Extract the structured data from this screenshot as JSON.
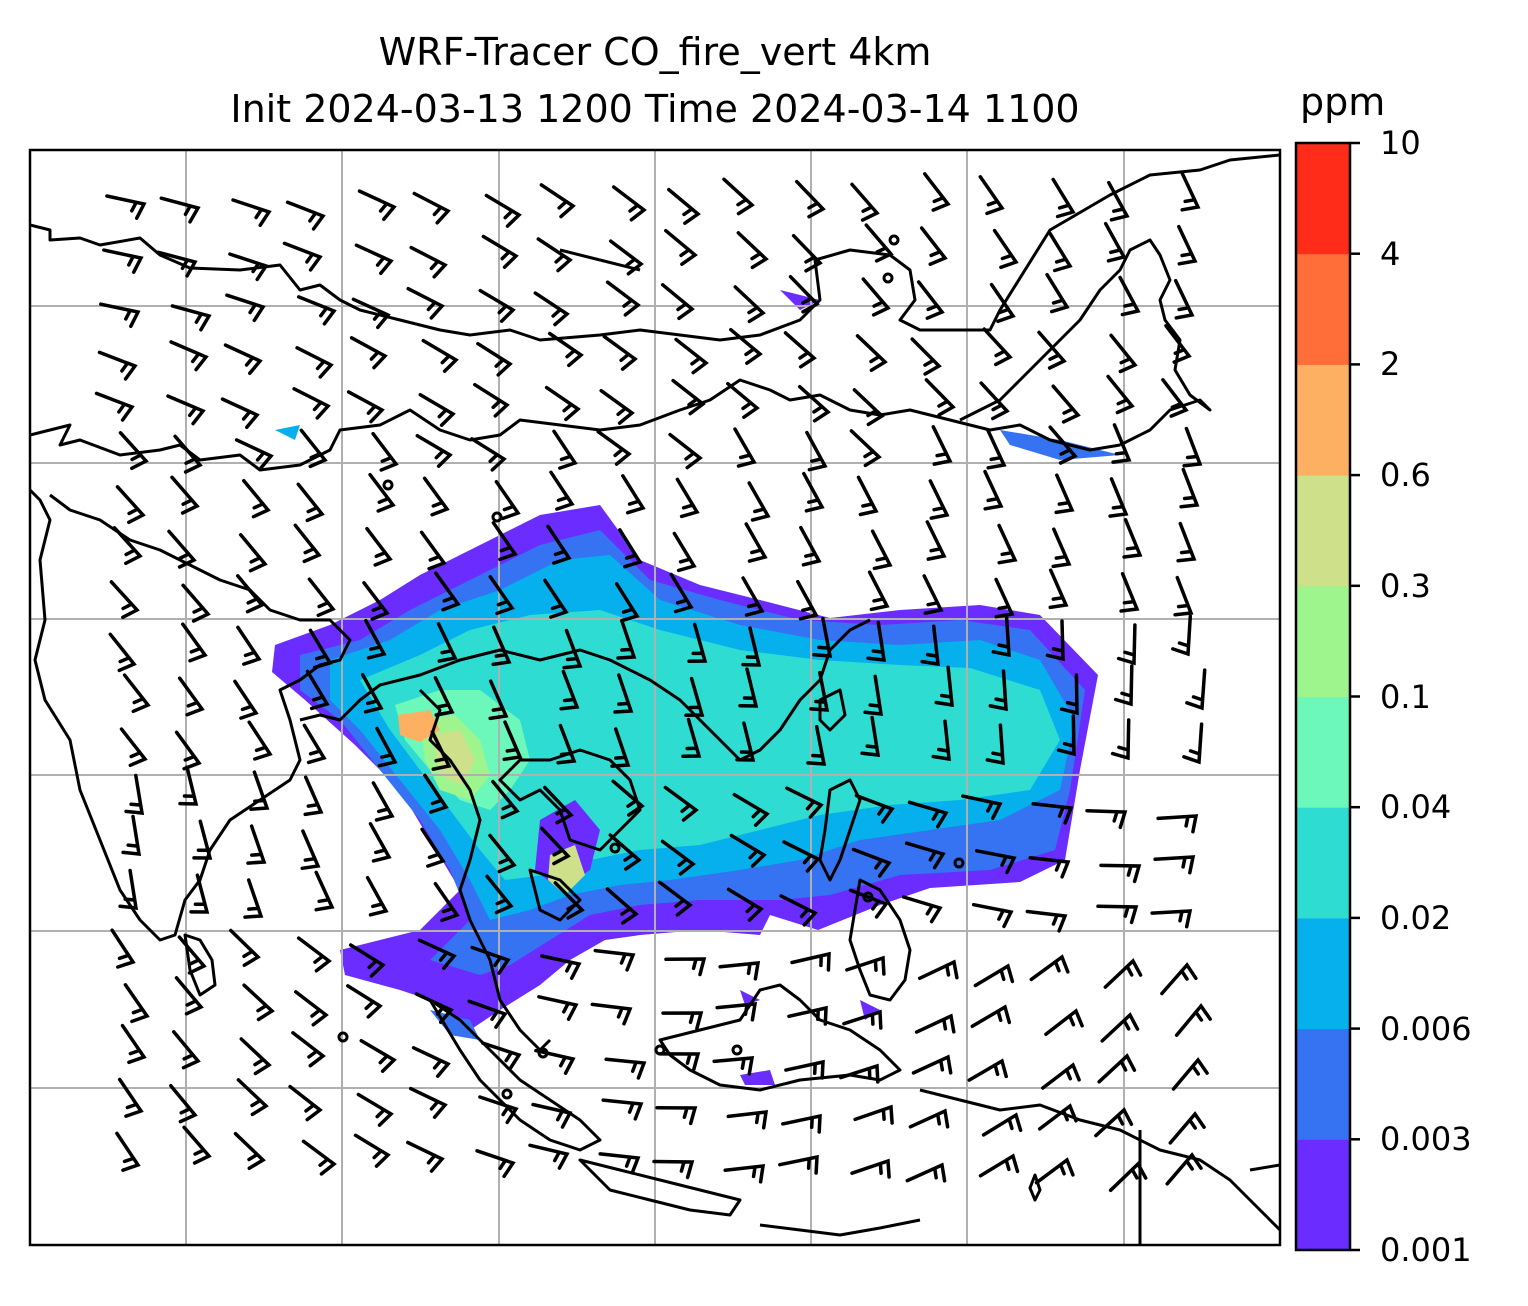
{
  "title_line1": "WRF-Tracer CO_fire_vert 4km",
  "title_line2": "Init 2024-03-13 1200 Time 2024-03-14 1100",
  "colorbar": {
    "unit": "ppm",
    "ticks": [
      "10",
      "4",
      "2",
      "0.6",
      "0.3",
      "0.1",
      "0.04",
      "0.02",
      "0.006",
      "0.003",
      "0.001"
    ],
    "colors": [
      "#6a2cff",
      "#3573f2",
      "#05b0ec",
      "#2edcd2",
      "#6cf8bb",
      "#9ef58e",
      "#cfe08a",
      "#fdb062",
      "#ff6e39",
      "#ff2c19"
    ]
  }
}
